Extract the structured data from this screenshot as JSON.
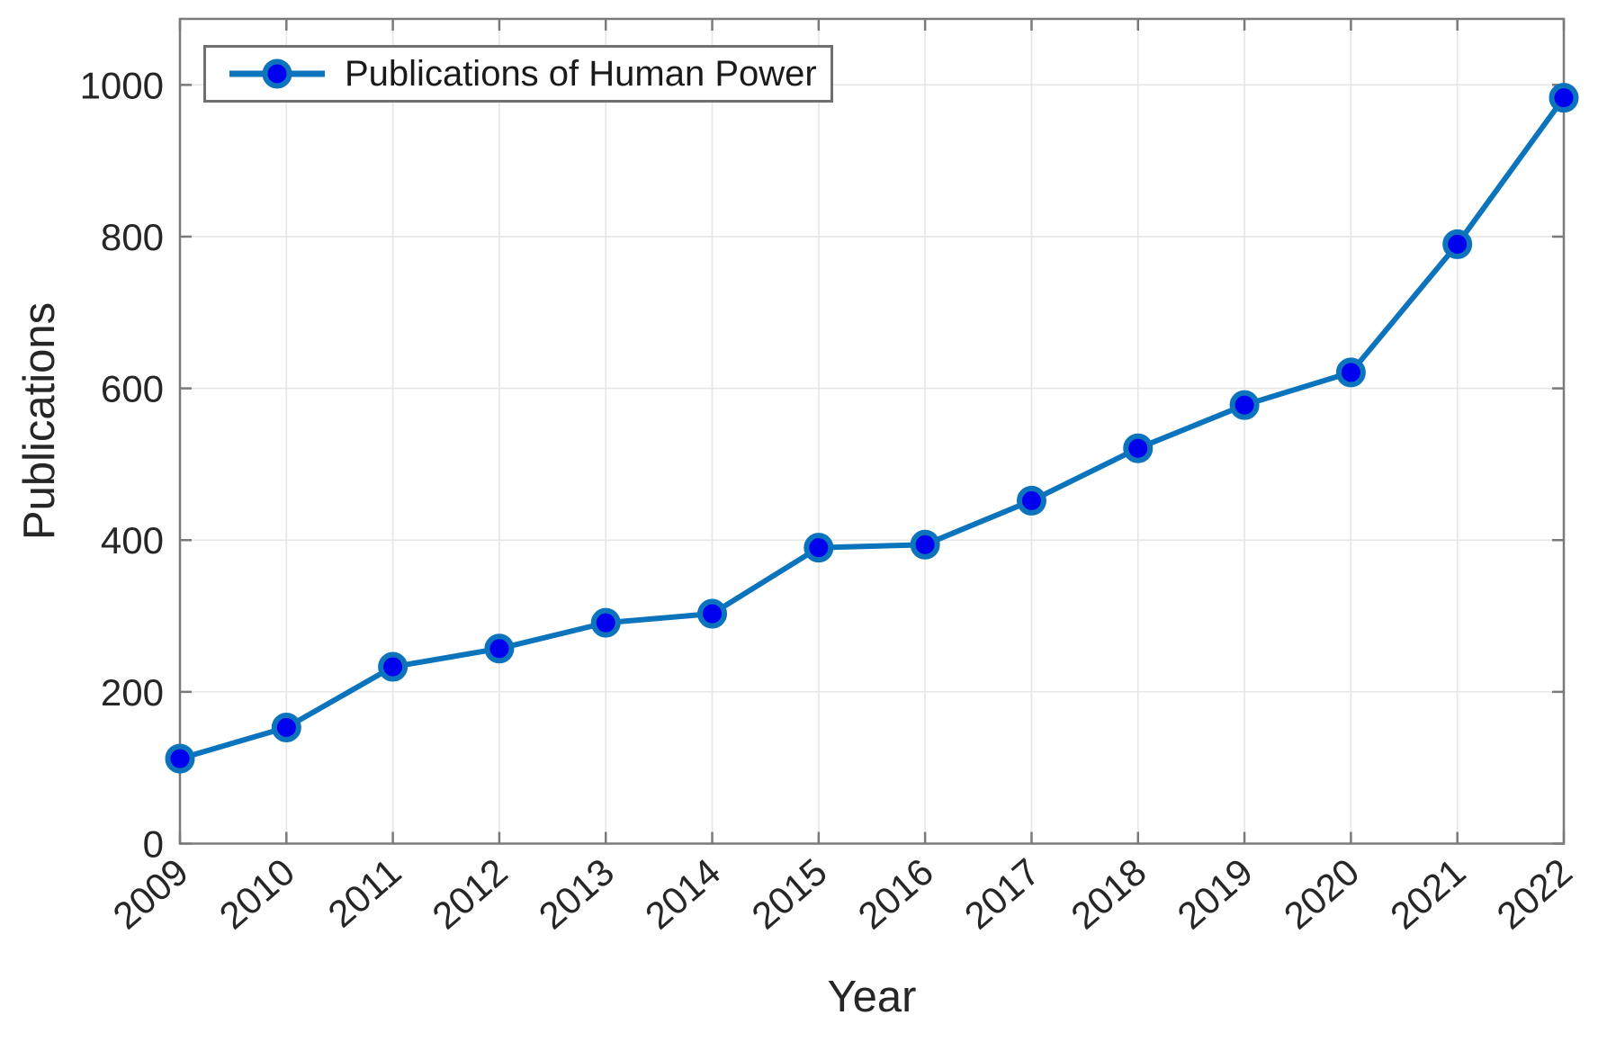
{
  "chart_data": {
    "type": "line",
    "title": "",
    "xlabel": "Year",
    "ylabel": "Publications",
    "x": [
      2009,
      2010,
      2011,
      2012,
      2013,
      2014,
      2015,
      2016,
      2017,
      2018,
      2019,
      2020,
      2021,
      2022
    ],
    "series": [
      {
        "name": "Publications of Human Power",
        "values": [
          112,
          153,
          233,
          257,
          291,
          303,
          390,
          394,
          452,
          521,
          578,
          621,
          790,
          983
        ]
      }
    ],
    "x_ticks": [
      "2009",
      "2010",
      "2011",
      "2012",
      "2013",
      "2014",
      "2015",
      "2016",
      "2017",
      "2018",
      "2019",
      "2020",
      "2021",
      "2022"
    ],
    "y_ticks": [
      "0",
      "200",
      "400",
      "600",
      "800",
      "1000"
    ],
    "xlim": [
      2009,
      2022
    ],
    "ylim": [
      0,
      1087
    ],
    "grid": true,
    "legend_position": "upper-left-inside",
    "style": {
      "line_color": "#0c73bd",
      "marker_face_color": "#0000ee",
      "marker_edge_color": "#0c73bd",
      "grid_color": "#e6e6e6",
      "spine_color": "#7a7a7a",
      "tick_label_color": "#262626",
      "legend_border_color": "#707070",
      "background_color": "#ffffff"
    }
  }
}
